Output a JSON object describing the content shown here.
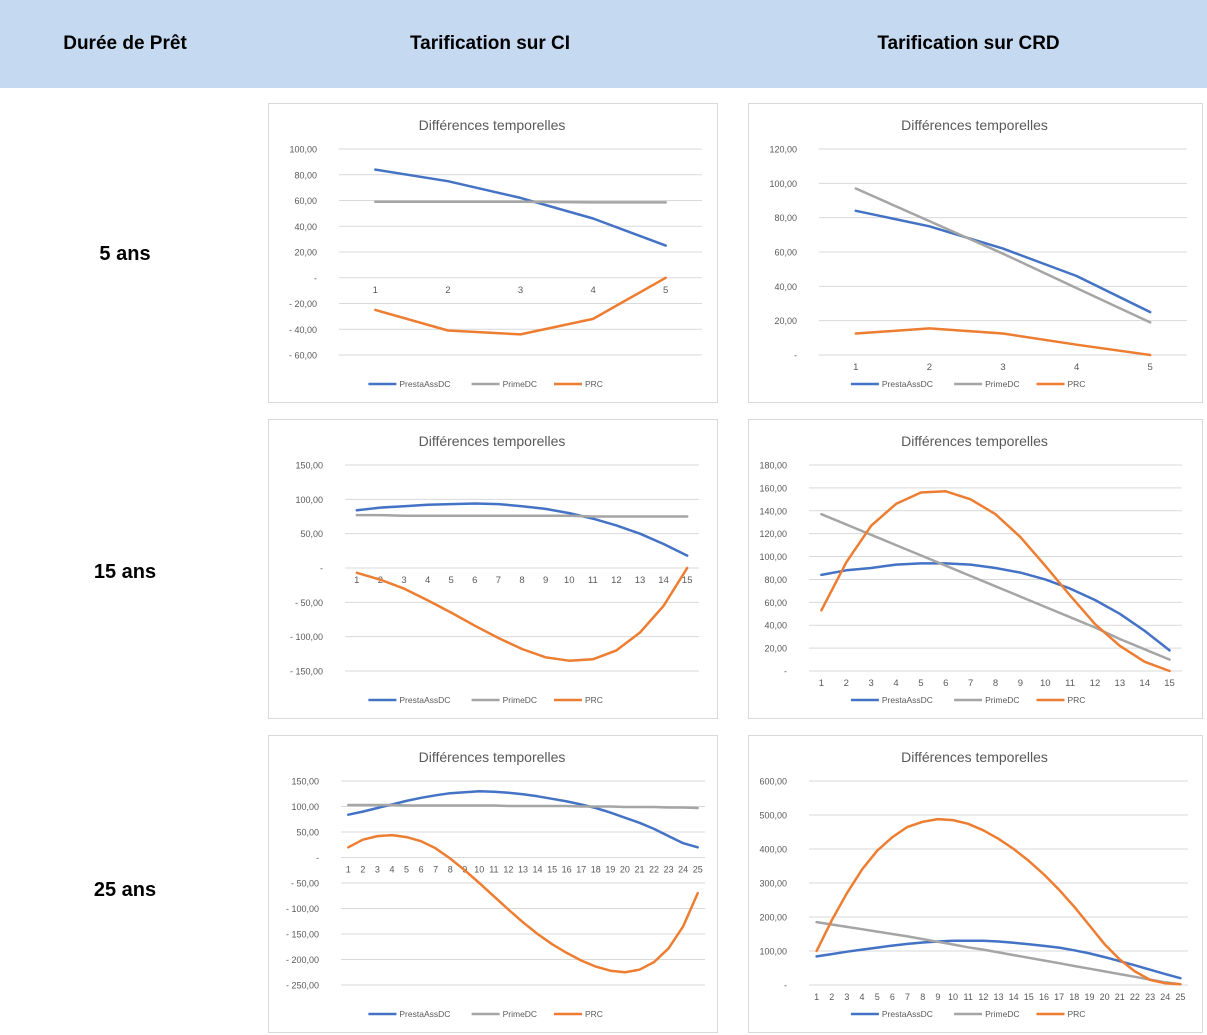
{
  "header": {
    "col1": "Durée de Prêt",
    "col2": "Tarification sur CI",
    "col3": "Tarification sur CRD",
    "background": "#c5d9f1"
  },
  "rows": [
    {
      "label": "5 ans"
    },
    {
      "label": "15 ans"
    },
    {
      "label": "25 ans"
    }
  ],
  "legend_colors": {
    "PrestaAssDC": "#4472c4",
    "PrimeDC": "#a5a5a5",
    "PRC": "#ed7d31"
  },
  "chart_data": [
    {
      "type": "line",
      "title": "Différences temporelles",
      "x": [
        1,
        2,
        3,
        4,
        5
      ],
      "y_ticks": [
        -60,
        -40,
        -20,
        0,
        20,
        40,
        60,
        80,
        100
      ],
      "y_tick_labels": [
        "- 60,00",
        "- 40,00",
        "- 20,00",
        "-",
        "20,00",
        "40,00",
        "60,00",
        "80,00",
        "100,00"
      ],
      "ylim": [
        -60,
        100
      ],
      "grid": true,
      "legend": "bottom",
      "series": [
        {
          "name": "PrestaAssDC",
          "values": [
            84,
            75,
            62,
            46,
            25
          ]
        },
        {
          "name": "PrimeDC",
          "values": [
            59,
            59,
            59,
            58.5,
            58.5
          ]
        },
        {
          "name": "PRC",
          "values": [
            -25,
            -41,
            -44,
            -32,
            0
          ]
        }
      ]
    },
    {
      "type": "line",
      "title": "Différences temporelles",
      "x": [
        1,
        2,
        3,
        4,
        5
      ],
      "y_ticks": [
        0,
        20,
        40,
        60,
        80,
        100,
        120
      ],
      "y_tick_labels": [
        "-",
        "20,00",
        "40,00",
        "60,00",
        "80,00",
        "100,00",
        "120,00"
      ],
      "ylim": [
        0,
        120
      ],
      "grid": true,
      "legend": "bottom",
      "series": [
        {
          "name": "PrestaAssDC",
          "values": [
            84,
            75,
            62,
            46,
            25
          ]
        },
        {
          "name": "PrimeDC",
          "values": [
            97,
            78,
            59,
            39,
            19
          ]
        },
        {
          "name": "PRC",
          "values": [
            12.5,
            15.5,
            12.5,
            6,
            0
          ]
        }
      ]
    },
    {
      "type": "line",
      "title": "Différences temporelles",
      "x": [
        1,
        2,
        3,
        4,
        5,
        6,
        7,
        8,
        9,
        10,
        11,
        12,
        13,
        14,
        15
      ],
      "y_ticks": [
        -150,
        -100,
        -50,
        0,
        50,
        100,
        150
      ],
      "y_tick_labels": [
        "- 150,00",
        "- 100,00",
        "- 50,00",
        "-",
        "50,00",
        "100,00",
        "150,00"
      ],
      "ylim": [
        -150,
        150
      ],
      "grid": true,
      "legend": "bottom",
      "series": [
        {
          "name": "PrestaAssDC",
          "values": [
            84,
            88,
            90,
            92,
            93,
            94,
            93,
            90,
            86,
            80,
            72,
            62,
            50,
            35,
            18
          ]
        },
        {
          "name": "PrimeDC",
          "values": [
            77,
            77,
            76,
            76,
            76,
            76,
            76,
            76,
            76,
            76,
            75,
            75,
            75,
            75,
            75
          ]
        },
        {
          "name": "PRC",
          "values": [
            -7,
            -17,
            -30,
            -47,
            -65,
            -84,
            -102,
            -118,
            -130,
            -135,
            -133,
            -120,
            -94,
            -55,
            0
          ]
        }
      ]
    },
    {
      "type": "line",
      "title": "Différences temporelles",
      "x": [
        1,
        2,
        3,
        4,
        5,
        6,
        7,
        8,
        9,
        10,
        11,
        12,
        13,
        14,
        15
      ],
      "y_ticks": [
        0,
        20,
        40,
        60,
        80,
        100,
        120,
        140,
        160,
        180
      ],
      "y_tick_labels": [
        "-",
        "20,00",
        "40,00",
        "60,00",
        "80,00",
        "100,00",
        "120,00",
        "140,00",
        "160,00",
        "180,00"
      ],
      "ylim": [
        0,
        180
      ],
      "grid": true,
      "legend": "bottom",
      "series": [
        {
          "name": "PrestaAssDC",
          "values": [
            84,
            88,
            90,
            93,
            94,
            94,
            93,
            90,
            86,
            80,
            72,
            62,
            50,
            35,
            18
          ]
        },
        {
          "name": "PrimeDC",
          "values": [
            137,
            128,
            119,
            110,
            101,
            92,
            83,
            74,
            65,
            56,
            47,
            38,
            28,
            19,
            10
          ]
        },
        {
          "name": "PRC",
          "values": [
            53,
            95,
            127,
            146,
            156,
            157,
            150,
            137,
            117,
            92,
            66,
            41,
            22,
            8,
            0
          ]
        }
      ]
    },
    {
      "type": "line",
      "title": "Différences temporelles",
      "x": [
        1,
        2,
        3,
        4,
        5,
        6,
        7,
        8,
        9,
        10,
        11,
        12,
        13,
        14,
        15,
        16,
        17,
        18,
        19,
        20,
        21,
        22,
        23,
        24,
        25
      ],
      "y_ticks": [
        -250,
        -200,
        -150,
        -100,
        -50,
        0,
        50,
        100,
        150
      ],
      "y_tick_labels": [
        "- 250,00",
        "- 200,00",
        "- 150,00",
        "- 100,00",
        "- 50,00",
        "-",
        "50,00",
        "100,00",
        "150,00"
      ],
      "ylim": [
        -250,
        150
      ],
      "grid": true,
      "legend": "bottom",
      "series": [
        {
          "name": "PrestaAssDC",
          "values": [
            84,
            90,
            97,
            104,
            111,
            117,
            122,
            126,
            128,
            130,
            129,
            127,
            124,
            120,
            115,
            110,
            104,
            97,
            88,
            78,
            68,
            56,
            42,
            28,
            20
          ]
        },
        {
          "name": "PrimeDC",
          "values": [
            103,
            103,
            103,
            103,
            102,
            102,
            102,
            102,
            102,
            102,
            102,
            101,
            101,
            101,
            101,
            101,
            100,
            100,
            100,
            99,
            99,
            99,
            98,
            98,
            97
          ]
        },
        {
          "name": "PRC",
          "values": [
            20,
            35,
            42,
            44,
            40,
            32,
            18,
            -2,
            -25,
            -50,
            -76,
            -102,
            -127,
            -150,
            -170,
            -187,
            -202,
            -214,
            -222,
            -225,
            -220,
            -205,
            -178,
            -135,
            -70
          ]
        }
      ]
    },
    {
      "type": "line",
      "title": "Différences temporelles",
      "x": [
        1,
        2,
        3,
        4,
        5,
        6,
        7,
        8,
        9,
        10,
        11,
        12,
        13,
        14,
        15,
        16,
        17,
        18,
        19,
        20,
        21,
        22,
        23,
        24,
        25
      ],
      "y_ticks": [
        0,
        100,
        200,
        300,
        400,
        500,
        600
      ],
      "y_tick_labels": [
        "-",
        "100,00",
        "200,00",
        "300,00",
        "400,00",
        "500,00",
        "600,00"
      ],
      "ylim": [
        0,
        600
      ],
      "grid": true,
      "legend": "bottom",
      "series": [
        {
          "name": "PrestaAssDC",
          "values": [
            84,
            91,
            98,
            104,
            110,
            116,
            121,
            125,
            128,
            130,
            130,
            130,
            128,
            124,
            120,
            115,
            110,
            102,
            93,
            82,
            70,
            58,
            45,
            32,
            20
          ]
        },
        {
          "name": "PrimeDC",
          "values": [
            185,
            178,
            171,
            164,
            157,
            150,
            143,
            135,
            127,
            119,
            111,
            104,
            96,
            88,
            80,
            72,
            64,
            56,
            48,
            40,
            32,
            24,
            16,
            8,
            2
          ]
        },
        {
          "name": "PRC",
          "values": [
            100,
            190,
            270,
            340,
            395,
            435,
            465,
            480,
            488,
            485,
            474,
            455,
            430,
            400,
            365,
            325,
            280,
            230,
            175,
            120,
            75,
            40,
            15,
            5,
            2
          ]
        }
      ]
    }
  ]
}
